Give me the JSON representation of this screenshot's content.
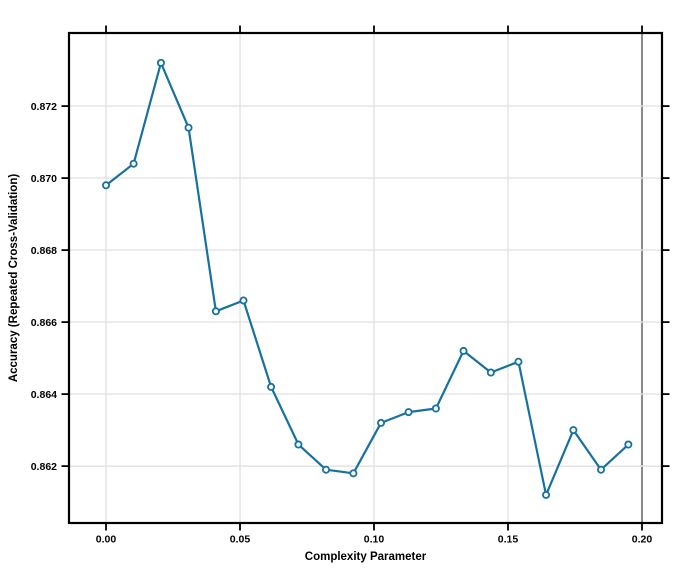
{
  "figure": {
    "background": "#ffffff"
  },
  "chart_data": {
    "type": "line",
    "title": "",
    "xlabel": "Complexity Parameter",
    "ylabel": "Accuracy (Repeated Cross-Validation)",
    "x": [
      0.0,
      0.0103,
      0.0205,
      0.0308,
      0.041,
      0.0513,
      0.0616,
      0.0718,
      0.0821,
      0.0923,
      0.1026,
      0.1129,
      0.1231,
      0.1334,
      0.1436,
      0.1539,
      0.1642,
      0.1744,
      0.1847,
      0.1949
    ],
    "series": [
      {
        "name": "Accuracy (Repeated Cross-Validation)",
        "values": [
          0.8698,
          0.8704,
          0.8732,
          0.8714,
          0.8663,
          0.8666,
          0.8642,
          0.8626,
          0.8619,
          0.8618,
          0.8632,
          0.8635,
          0.8636,
          0.8652,
          0.8646,
          0.8649,
          0.8612,
          0.863,
          0.8619,
          0.8626
        ]
      }
    ],
    "x_ticks": {
      "values": [
        0.0,
        0.05,
        0.1,
        0.15,
        0.2
      ],
      "labels": [
        "0.00",
        "0.05",
        "0.10",
        "0.15",
        "0.20"
      ]
    },
    "y_ticks": {
      "values": [
        0.862,
        0.864,
        0.866,
        0.868,
        0.87,
        0.872
      ],
      "labels": [
        "0.862",
        "0.864",
        "0.866",
        "0.868",
        "0.870",
        "0.872"
      ]
    },
    "xlim": [
      -0.01381,
      0.20746
    ],
    "ylim": [
      0.86042,
      0.87403
    ],
    "grid": true,
    "legend": "none",
    "marker": "open-circle",
    "line_color": "#17719F",
    "marker_fill": "#FFFFFF",
    "grid_color": "#E3E3E3",
    "dark_gridline_x": 0.2,
    "dark_gridline_color": "#3C3C3C",
    "axis_color": "#000000"
  }
}
